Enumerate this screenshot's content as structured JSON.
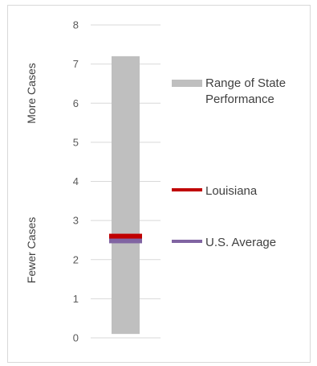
{
  "chart_data": {
    "type": "bar",
    "ylim": [
      0,
      8
    ],
    "yticks": [
      0,
      1,
      2,
      3,
      4,
      5,
      6,
      7,
      8
    ],
    "grid": true,
    "range_bar": {
      "name": "Range of State Performance",
      "low": 0.1,
      "high": 7.2,
      "color": "#bfbfbf"
    },
    "markers": [
      {
        "name": "Louisiana",
        "value": 2.6,
        "color": "#c00000"
      },
      {
        "name": "U.S. Average",
        "value": 2.5,
        "color": "#8064a2"
      }
    ],
    "side_labels": {
      "top": "More Cases",
      "bottom": "Fewer Cases"
    },
    "legend_position": "right"
  }
}
